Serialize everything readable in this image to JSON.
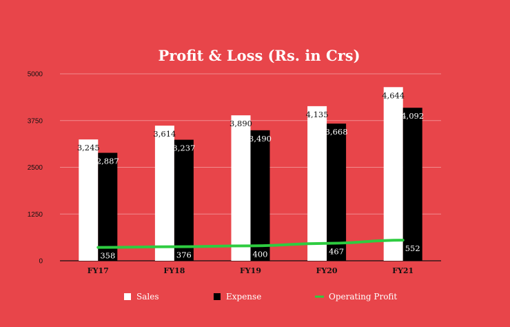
{
  "chart_data": {
    "type": "bar",
    "title": "Profit & Loss (Rs. in Crs)",
    "categories": [
      "FY17",
      "FY18",
      "FY19",
      "FY20",
      "FY21"
    ],
    "ylim": [
      0,
      5000
    ],
    "yticks": [
      0,
      1250,
      2500,
      3750,
      5000
    ],
    "ytick_labels": [
      "0",
      "1250",
      "2500",
      "3750",
      "5000"
    ],
    "grid": true,
    "legend_position": "bottom",
    "series": [
      {
        "name": "Sales",
        "type": "bar",
        "color": "#FFFFFF",
        "values": [
          3245,
          3614,
          3890,
          4135,
          4644
        ],
        "labels": [
          "3,245",
          "3,614",
          "3,890",
          "4,135",
          "4,644"
        ]
      },
      {
        "name": "Expense",
        "type": "bar",
        "color": "#000000",
        "values": [
          2887,
          3237,
          3490,
          3668,
          4092
        ],
        "labels": [
          "2,887",
          "3,237",
          "3,490",
          "3,668",
          "4,092"
        ]
      },
      {
        "name": "Operating Profit",
        "type": "line",
        "color": "#2ECC40",
        "values": [
          358,
          376,
          400,
          467,
          552
        ],
        "labels": [
          "358",
          "376",
          "400",
          "467",
          "552"
        ]
      }
    ]
  },
  "colors": {
    "background": "#E8454A",
    "gridline": "#F08C8F"
  }
}
